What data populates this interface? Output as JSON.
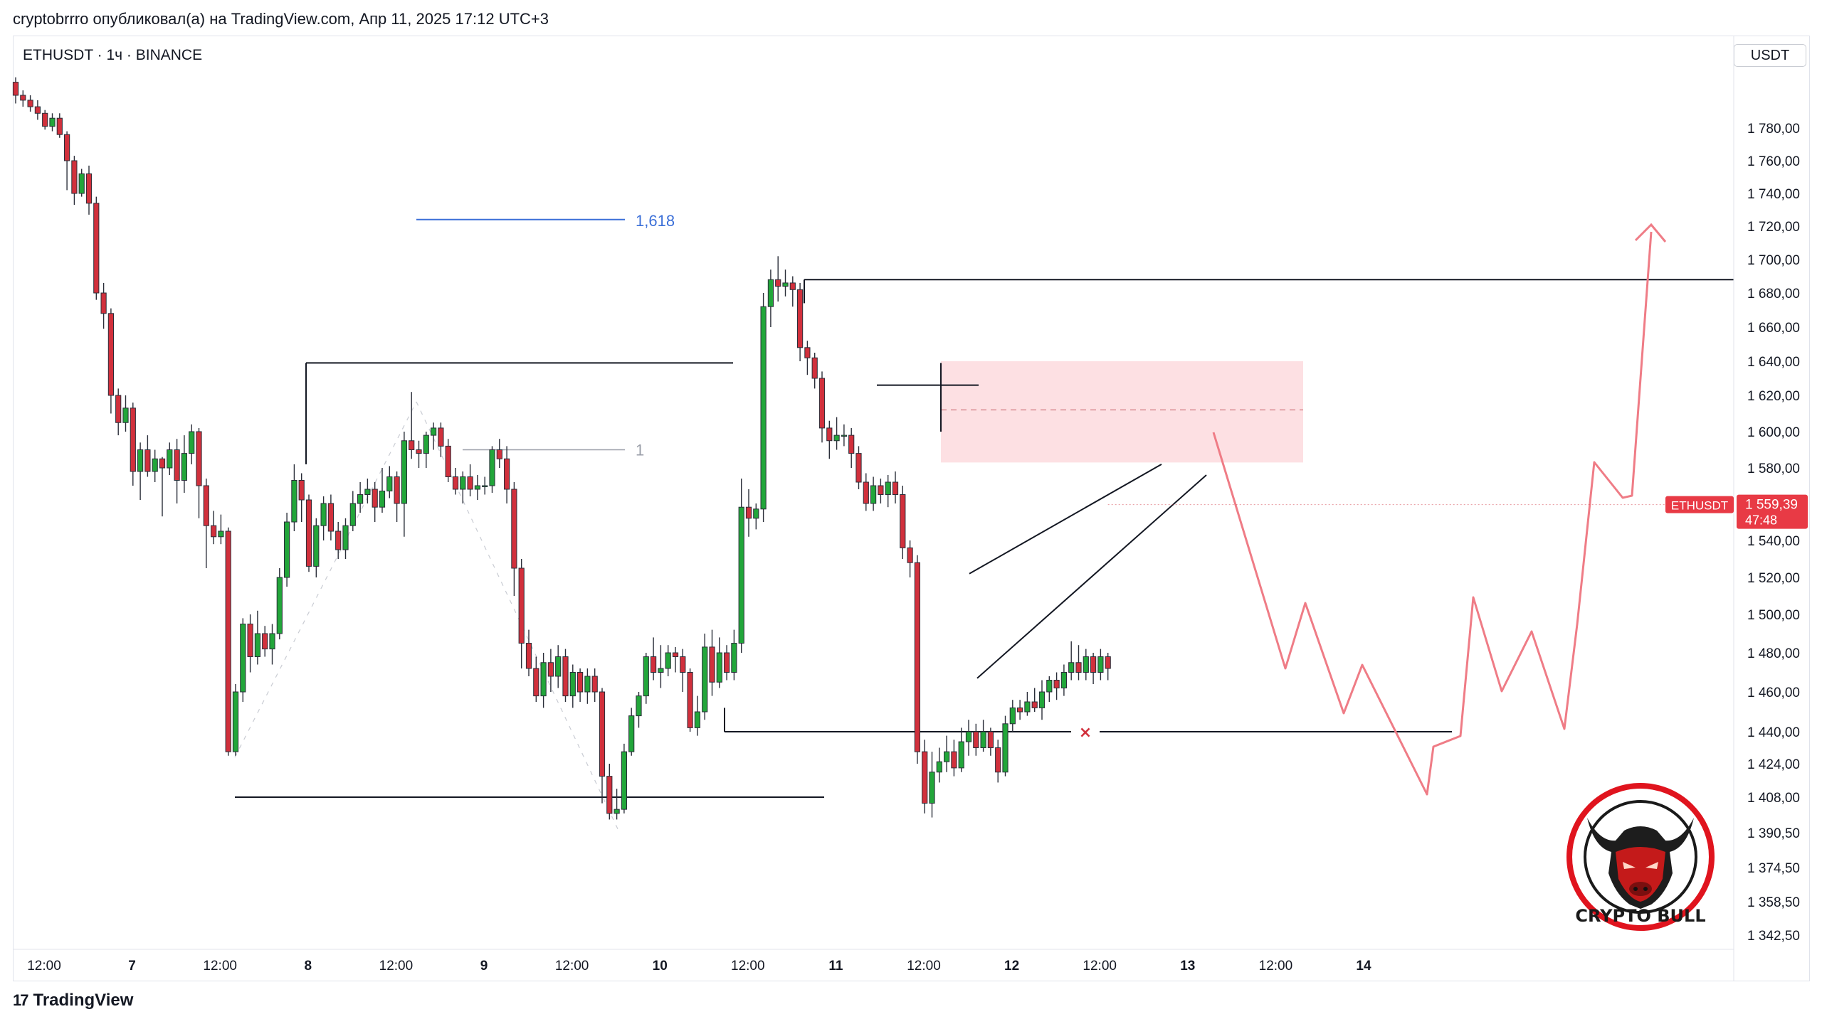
{
  "header": {
    "published": "cryptobrrro опубликовал(а) на TradingView.com, Апр 11, 2025 17:12 UTC+3"
  },
  "symbol": {
    "title": "ETHUSDT · 1ч · BINANCE"
  },
  "price_scale": {
    "unit": "USDT"
  },
  "footer": {
    "brand": "TradingView"
  },
  "badge": {
    "text": "CRYPTO BULL",
    "color": "#e0141e"
  },
  "colors": {
    "up": "#22a63a",
    "down": "#d1303c",
    "fib": "#3b6fd8",
    "projection": "#ef7c86",
    "zone": "#fde0e3"
  },
  "chart_data": {
    "type": "candlestick",
    "title": "ETHUSDT · 1ч · BINANCE",
    "ylim": [
      1335,
      1822
    ],
    "y_ticks": [
      1780,
      1760,
      1740,
      1720,
      1700,
      1680,
      1660,
      1640,
      1620,
      1600,
      1580,
      1560,
      1540,
      1520,
      1500,
      1480,
      1460,
      1440,
      1424,
      1408,
      1390.5,
      1374.5,
      1358.5,
      1342.5
    ],
    "y_tick_labels": [
      "1 780,00",
      "1 760,00",
      "1 740,00",
      "1 720,00",
      "1 700,00",
      "1 680,00",
      "1 660,00",
      "1 640,00",
      "1 620,00",
      "1 600,00",
      "1 580,00",
      "1 560,00",
      "1 540,00",
      "1 520,00",
      "1 500,00",
      "1 480,00",
      "1 460,00",
      "1 440,00",
      "1 424,00",
      "1 408,00",
      "1 390,50",
      "1 374,50",
      "1 358,50",
      "1 342,50"
    ],
    "x_ticks": [
      {
        "label": "12:00",
        "x": 0
      },
      {
        "label": "7",
        "x": 12
      },
      {
        "label": "12:00",
        "x": 24
      },
      {
        "label": "8",
        "x": 36
      },
      {
        "label": "12:00",
        "x": 48
      },
      {
        "label": "9",
        "x": 60
      },
      {
        "label": "12:00",
        "x": 72
      },
      {
        "label": "10",
        "x": 84
      },
      {
        "label": "12:00",
        "x": 96
      },
      {
        "label": "11",
        "x": 108
      },
      {
        "label": "12:00",
        "x": 120
      },
      {
        "label": "12",
        "x": 132
      },
      {
        "label": "12:00",
        "x": 144
      },
      {
        "label": "13",
        "x": 156
      },
      {
        "label": "12:00",
        "x": 168
      },
      {
        "label": "14",
        "x": 180
      }
    ],
    "current_price": {
      "label": "ETHUSDT",
      "value": "1 559,39",
      "countdown": "47:48",
      "price": 1559.39
    },
    "fib_levels": [
      {
        "label": "1,618",
        "price": 1724
      },
      {
        "label": "1",
        "price": 1590
      }
    ],
    "candles": [
      [
        1808,
        1800,
        1811,
        1795
      ],
      [
        1800,
        1797,
        1803,
        1793
      ],
      [
        1797,
        1793,
        1800,
        1790
      ],
      [
        1793,
        1789,
        1797,
        1785
      ],
      [
        1789,
        1781,
        1791,
        1779
      ],
      [
        1781,
        1786,
        1789,
        1778
      ],
      [
        1786,
        1776,
        1789,
        1774
      ],
      [
        1776,
        1760,
        1778,
        1742
      ],
      [
        1760,
        1740,
        1763,
        1733
      ],
      [
        1740,
        1752,
        1755,
        1738
      ],
      [
        1752,
        1734,
        1757,
        1727
      ],
      [
        1734,
        1680,
        1738,
        1676
      ],
      [
        1680,
        1668,
        1686,
        1659
      ],
      [
        1668,
        1620,
        1671,
        1610
      ],
      [
        1620,
        1605,
        1624,
        1598
      ],
      [
        1605,
        1613,
        1620,
        1600
      ],
      [
        1613,
        1578,
        1616,
        1570
      ],
      [
        1578,
        1590,
        1594,
        1562
      ],
      [
        1590,
        1578,
        1598,
        1575
      ],
      [
        1578,
        1585,
        1590,
        1572
      ],
      [
        1585,
        1580,
        1586,
        1553
      ],
      [
        1580,
        1590,
        1594,
        1576
      ],
      [
        1590,
        1573,
        1596,
        1560
      ],
      [
        1573,
        1588,
        1598,
        1566
      ],
      [
        1588,
        1600,
        1604,
        1582
      ],
      [
        1600,
        1570,
        1602,
        1552
      ],
      [
        1570,
        1548,
        1574,
        1525
      ],
      [
        1548,
        1542,
        1556,
        1538
      ],
      [
        1542,
        1545,
        1554,
        1538
      ],
      [
        1545,
        1430,
        1547,
        1428
      ],
      [
        1430,
        1460,
        1464,
        1428
      ],
      [
        1460,
        1495,
        1498,
        1455
      ],
      [
        1495,
        1478,
        1500,
        1470
      ],
      [
        1478,
        1490,
        1502,
        1474
      ],
      [
        1490,
        1482,
        1494,
        1478
      ],
      [
        1482,
        1490,
        1495,
        1474
      ],
      [
        1490,
        1520,
        1525,
        1487
      ],
      [
        1520,
        1550,
        1555,
        1515
      ],
      [
        1550,
        1573,
        1582,
        1545
      ],
      [
        1573,
        1562,
        1577,
        1550
      ],
      [
        1562,
        1526,
        1565,
        1523
      ],
      [
        1526,
        1548,
        1552,
        1520
      ],
      [
        1548,
        1560,
        1564,
        1540
      ],
      [
        1560,
        1545,
        1565,
        1540
      ],
      [
        1545,
        1535,
        1550,
        1530
      ],
      [
        1535,
        1548,
        1552,
        1530
      ],
      [
        1548,
        1560,
        1567,
        1545
      ],
      [
        1560,
        1565,
        1572,
        1555
      ],
      [
        1565,
        1568,
        1574,
        1560
      ],
      [
        1568,
        1558,
        1572,
        1550
      ],
      [
        1558,
        1567,
        1580,
        1555
      ],
      [
        1567,
        1575,
        1581,
        1563
      ],
      [
        1575,
        1560,
        1578,
        1550
      ],
      [
        1560,
        1595,
        1600,
        1542
      ],
      [
        1595,
        1590,
        1622,
        1585
      ],
      [
        1590,
        1588,
        1595,
        1580
      ],
      [
        1588,
        1598,
        1600,
        1580
      ],
      [
        1598,
        1602,
        1605,
        1590
      ],
      [
        1602,
        1592,
        1605,
        1586
      ],
      [
        1592,
        1575,
        1596,
        1572
      ],
      [
        1575,
        1568,
        1580,
        1565
      ],
      [
        1568,
        1575,
        1578,
        1560
      ],
      [
        1575,
        1568,
        1582,
        1564
      ],
      [
        1568,
        1570,
        1576,
        1562
      ],
      [
        1570,
        1570,
        1575,
        1565
      ],
      [
        1570,
        1590,
        1592,
        1566
      ],
      [
        1590,
        1585,
        1596,
        1580
      ],
      [
        1585,
        1568,
        1592,
        1560
      ],
      [
        1568,
        1525,
        1572,
        1510
      ],
      [
        1525,
        1485,
        1530,
        1472
      ],
      [
        1485,
        1472,
        1492,
        1468
      ],
      [
        1472,
        1458,
        1478,
        1455
      ],
      [
        1458,
        1475,
        1480,
        1452
      ],
      [
        1475,
        1468,
        1482,
        1460
      ],
      [
        1468,
        1478,
        1484,
        1462
      ],
      [
        1478,
        1458,
        1482,
        1455
      ],
      [
        1458,
        1470,
        1474,
        1452
      ],
      [
        1470,
        1460,
        1472,
        1455
      ],
      [
        1460,
        1468,
        1472,
        1454
      ],
      [
        1468,
        1460,
        1472,
        1455
      ],
      [
        1460,
        1418,
        1462,
        1405
      ],
      [
        1418,
        1400,
        1424,
        1397
      ],
      [
        1400,
        1402,
        1412,
        1397
      ],
      [
        1402,
        1430,
        1434,
        1400
      ],
      [
        1430,
        1448,
        1452,
        1428
      ],
      [
        1448,
        1458,
        1460,
        1442
      ],
      [
        1458,
        1478,
        1480,
        1454
      ],
      [
        1478,
        1470,
        1488,
        1466
      ],
      [
        1470,
        1472,
        1484,
        1462
      ],
      [
        1472,
        1480,
        1484,
        1468
      ],
      [
        1480,
        1478,
        1483,
        1470
      ],
      [
        1478,
        1470,
        1482,
        1460
      ],
      [
        1470,
        1442,
        1472,
        1440
      ],
      [
        1442,
        1450,
        1458,
        1438
      ],
      [
        1450,
        1483,
        1490,
        1446
      ],
      [
        1483,
        1465,
        1492,
        1458
      ],
      [
        1465,
        1480,
        1488,
        1462
      ],
      [
        1480,
        1470,
        1484,
        1466
      ],
      [
        1470,
        1485,
        1492,
        1466
      ],
      [
        1485,
        1558,
        1574,
        1480
      ],
      [
        1558,
        1552,
        1568,
        1542
      ],
      [
        1552,
        1557,
        1560,
        1546
      ],
      [
        1557,
        1672,
        1680,
        1550
      ],
      [
        1672,
        1688,
        1694,
        1660
      ],
      [
        1688,
        1684,
        1702,
        1675
      ],
      [
        1684,
        1686,
        1694,
        1678
      ],
      [
        1686,
        1682,
        1690,
        1672
      ],
      [
        1682,
        1648,
        1686,
        1640
      ],
      [
        1648,
        1642,
        1652,
        1632
      ],
      [
        1642,
        1630,
        1645,
        1624
      ],
      [
        1630,
        1602,
        1634,
        1594
      ],
      [
        1602,
        1595,
        1606,
        1585
      ],
      [
        1595,
        1598,
        1608,
        1590
      ],
      [
        1598,
        1598,
        1604,
        1592
      ],
      [
        1598,
        1588,
        1602,
        1580
      ],
      [
        1588,
        1572,
        1592,
        1568
      ],
      [
        1572,
        1560,
        1577,
        1556
      ],
      [
        1560,
        1570,
        1575,
        1556
      ],
      [
        1570,
        1565,
        1574,
        1560
      ],
      [
        1565,
        1572,
        1576,
        1558
      ],
      [
        1572,
        1565,
        1578,
        1560
      ],
      [
        1565,
        1536,
        1570,
        1530
      ],
      [
        1536,
        1528,
        1540,
        1520
      ],
      [
        1528,
        1430,
        1532,
        1424
      ],
      [
        1430,
        1405,
        1436,
        1400
      ],
      [
        1405,
        1420,
        1430,
        1398
      ],
      [
        1420,
        1425,
        1432,
        1415
      ],
      [
        1425,
        1430,
        1438,
        1420
      ],
      [
        1430,
        1422,
        1436,
        1418
      ],
      [
        1422,
        1435,
        1442,
        1420
      ],
      [
        1435,
        1440,
        1446,
        1428
      ],
      [
        1440,
        1432,
        1444,
        1428
      ],
      [
        1432,
        1440,
        1446,
        1430
      ],
      [
        1440,
        1432,
        1442,
        1428
      ],
      [
        1432,
        1420,
        1436,
        1415
      ],
      [
        1420,
        1444,
        1448,
        1418
      ],
      [
        1444,
        1452,
        1456,
        1440
      ],
      [
        1452,
        1450,
        1456,
        1446
      ],
      [
        1450,
        1455,
        1460,
        1448
      ],
      [
        1455,
        1452,
        1462,
        1450
      ],
      [
        1452,
        1460,
        1466,
        1446
      ],
      [
        1460,
        1466,
        1468,
        1455
      ],
      [
        1466,
        1462,
        1470,
        1456
      ],
      [
        1462,
        1470,
        1474,
        1458
      ],
      [
        1470,
        1475,
        1486,
        1466
      ],
      [
        1475,
        1470,
        1484,
        1466
      ],
      [
        1470,
        1478,
        1482,
        1466
      ],
      [
        1478,
        1470,
        1480,
        1464
      ],
      [
        1470,
        1478,
        1482,
        1466
      ],
      [
        1478,
        1472,
        1480,
        1466
      ]
    ]
  }
}
